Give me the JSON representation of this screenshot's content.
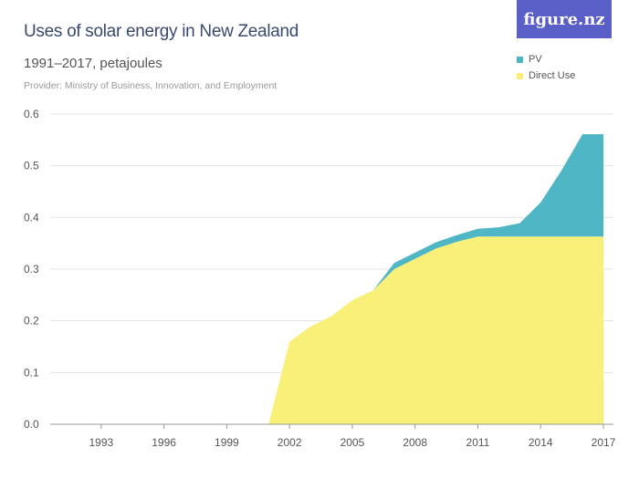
{
  "header": {
    "title": "Uses of solar energy in New Zealand",
    "subtitle": "1991–2017, petajoules",
    "provider": "Provider: Ministry of Business, Innovation, and Employment",
    "logo": "figure.nz"
  },
  "chart_data": {
    "type": "area",
    "stacked": true,
    "title": "Uses of solar energy in New Zealand",
    "subtitle": "1991–2017, petajoules",
    "ylim": [
      0,
      0.6
    ],
    "yticks": [
      "0.0",
      "0.1",
      "0.2",
      "0.3",
      "0.4",
      "0.5",
      "0.6"
    ],
    "xticks": [
      "1993",
      "1996",
      "1999",
      "2002",
      "2005",
      "2008",
      "2011",
      "2014",
      "2017"
    ],
    "grid": true,
    "legend": "top-right",
    "x": [
      1991,
      1992,
      1993,
      1994,
      1995,
      1996,
      1997,
      1998,
      1999,
      2000,
      2001,
      2002,
      2003,
      2004,
      2005,
      2006,
      2007,
      2008,
      2009,
      2010,
      2011,
      2012,
      2013,
      2014,
      2015,
      2016,
      2017
    ],
    "series": [
      {
        "name": "Direct Use",
        "color": "#f9f07a",
        "values": [
          0,
          0,
          0,
          0,
          0,
          0,
          0,
          0,
          0,
          0,
          0,
          0.16,
          0.189,
          0.209,
          0.24,
          0.259,
          0.3,
          0.32,
          0.34,
          0.353,
          0.363,
          0.363,
          0.363,
          0.363,
          0.363,
          0.363,
          0.363
        ]
      },
      {
        "name": "PV",
        "color": "#4fb6c6",
        "values": [
          0,
          0,
          0,
          0,
          0,
          0,
          0,
          0,
          0,
          0,
          0,
          0,
          0,
          0,
          0,
          0,
          0.012,
          0.012,
          0.012,
          0.013,
          0.015,
          0.018,
          0.026,
          0.066,
          0.128,
          0.198,
          0.198
        ]
      }
    ]
  }
}
